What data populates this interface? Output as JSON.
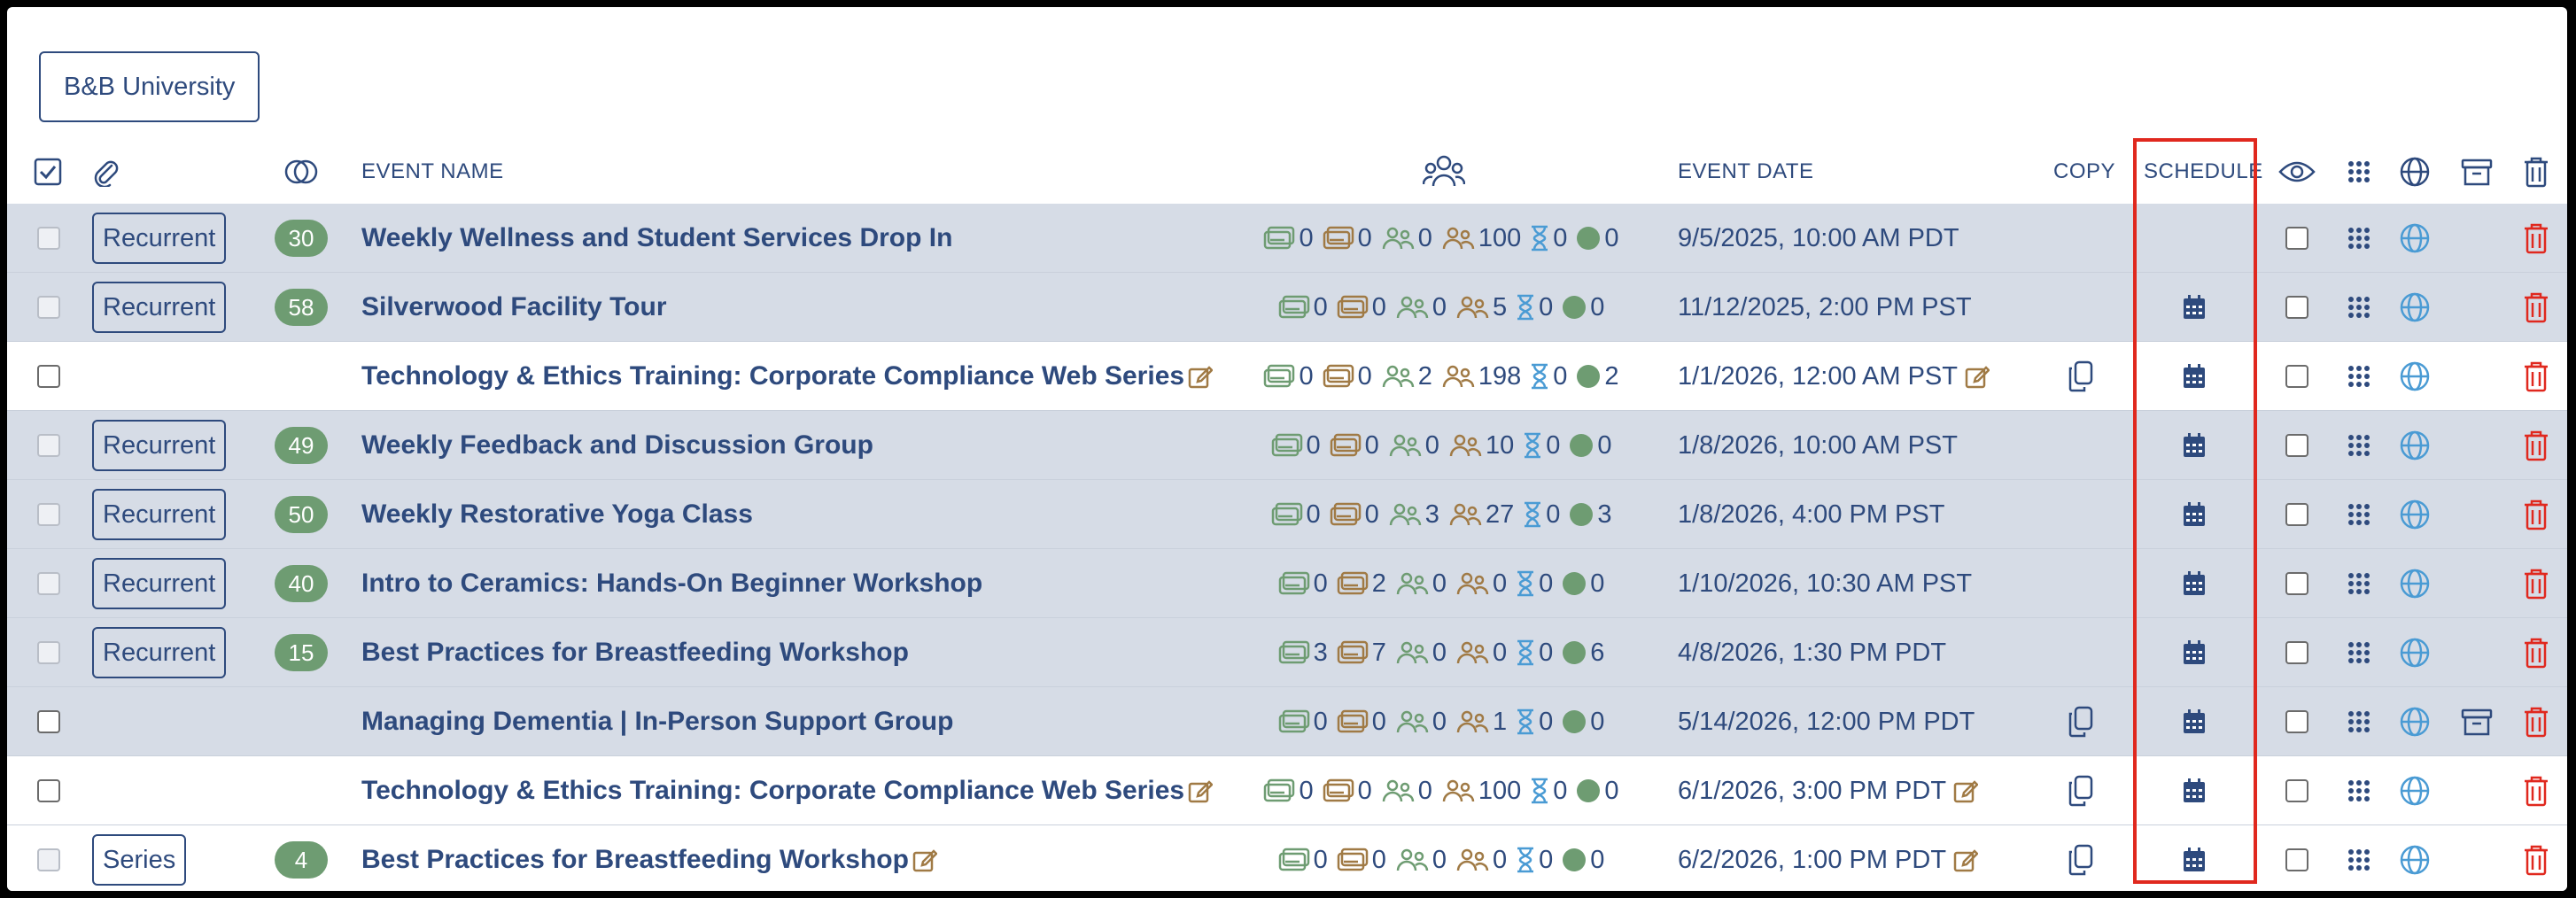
{
  "top_button": "B&B University",
  "header": {
    "event_name": "EVENT NAME",
    "event_date": "EVENT DATE",
    "copy": "COPY",
    "schedule": "SCHEDULE"
  },
  "colors": {
    "navy": "#2e4a7d",
    "green": "#6e9c72",
    "brown": "#a07a45",
    "blue_icon": "#4a9bd4",
    "red_icon": "#e0281e",
    "row_shaded": "#d6dce6"
  },
  "rows": [
    {
      "tag": "Recurrent",
      "count": "30",
      "name": "Weekly Wellness and Student Services Drop In",
      "edit_name": false,
      "s1": "0",
      "s2": "0",
      "s3": "0",
      "s4": "100",
      "s5": "0",
      "s6": "0",
      "date": "9/5/2025, 10:00 AM PDT",
      "edit_date": false,
      "copy": false,
      "schedule": false,
      "archive": false,
      "shaded": true,
      "cb_faded": true
    },
    {
      "tag": "Recurrent",
      "count": "58",
      "name": "Silverwood Facility Tour",
      "edit_name": false,
      "s1": "0",
      "s2": "0",
      "s3": "0",
      "s4": "5",
      "s5": "0",
      "s6": "0",
      "date": "11/12/2025, 2:00 PM PST",
      "edit_date": false,
      "copy": false,
      "schedule": true,
      "archive": false,
      "shaded": true,
      "cb_faded": true
    },
    {
      "tag": "",
      "count": "",
      "name": "Technology & Ethics Training: Corporate Compliance Web Series",
      "edit_name": true,
      "s1": "0",
      "s2": "0",
      "s3": "2",
      "s4": "198",
      "s5": "0",
      "s6": "2",
      "date": "1/1/2026, 12:00 AM PST",
      "edit_date": true,
      "copy": true,
      "schedule": true,
      "archive": false,
      "shaded": false,
      "cb_faded": false
    },
    {
      "tag": "Recurrent",
      "count": "49",
      "name": "Weekly Feedback and Discussion Group",
      "edit_name": false,
      "s1": "0",
      "s2": "0",
      "s3": "0",
      "s4": "10",
      "s5": "0",
      "s6": "0",
      "date": "1/8/2026, 10:00 AM PST",
      "edit_date": false,
      "copy": false,
      "schedule": true,
      "archive": false,
      "shaded": true,
      "cb_faded": true
    },
    {
      "tag": "Recurrent",
      "count": "50",
      "name": "Weekly Restorative Yoga Class",
      "edit_name": false,
      "s1": "0",
      "s2": "0",
      "s3": "3",
      "s4": "27",
      "s5": "0",
      "s6": "3",
      "date": "1/8/2026, 4:00 PM PST",
      "edit_date": false,
      "copy": false,
      "schedule": true,
      "archive": false,
      "shaded": true,
      "cb_faded": true
    },
    {
      "tag": "Recurrent",
      "count": "40",
      "name": "Intro to Ceramics: Hands-On Beginner Workshop",
      "edit_name": false,
      "s1": "0",
      "s2": "2",
      "s3": "0",
      "s4": "0",
      "s5": "0",
      "s6": "0",
      "date": "1/10/2026, 10:30 AM PST",
      "edit_date": false,
      "copy": false,
      "schedule": true,
      "archive": false,
      "shaded": true,
      "cb_faded": true
    },
    {
      "tag": "Recurrent",
      "count": "15",
      "name": "Best Practices for Breastfeeding Workshop",
      "edit_name": false,
      "s1": "3",
      "s2": "7",
      "s3": "0",
      "s4": "0",
      "s5": "0",
      "s6": "6",
      "date": "4/8/2026, 1:30 PM PDT",
      "edit_date": false,
      "copy": false,
      "schedule": true,
      "archive": false,
      "shaded": true,
      "cb_faded": true
    },
    {
      "tag": "",
      "count": "",
      "name": "Managing Dementia | In-Person Support Group",
      "edit_name": false,
      "s1": "0",
      "s2": "0",
      "s3": "0",
      "s4": "1",
      "s5": "0",
      "s6": "0",
      "date": "5/14/2026, 12:00 PM PDT",
      "edit_date": false,
      "copy": true,
      "schedule": true,
      "archive": true,
      "shaded": true,
      "cb_faded": false
    },
    {
      "tag": "",
      "count": "",
      "name": "Technology & Ethics Training: Corporate Compliance Web Series",
      "edit_name": true,
      "s1": "0",
      "s2": "0",
      "s3": "0",
      "s4": "100",
      "s5": "0",
      "s6": "0",
      "date": "6/1/2026, 3:00 PM PDT",
      "edit_date": true,
      "copy": true,
      "schedule": true,
      "archive": false,
      "shaded": false,
      "cb_faded": false
    },
    {
      "tag": "Series",
      "count": "4",
      "name": "Best Practices for Breastfeeding Workshop",
      "edit_name": true,
      "s1": "0",
      "s2": "0",
      "s3": "0",
      "s4": "0",
      "s5": "0",
      "s6": "0",
      "date": "6/2/2026, 1:00 PM PDT",
      "edit_date": true,
      "copy": true,
      "schedule": true,
      "archive": false,
      "shaded": false,
      "cb_faded": true
    }
  ]
}
